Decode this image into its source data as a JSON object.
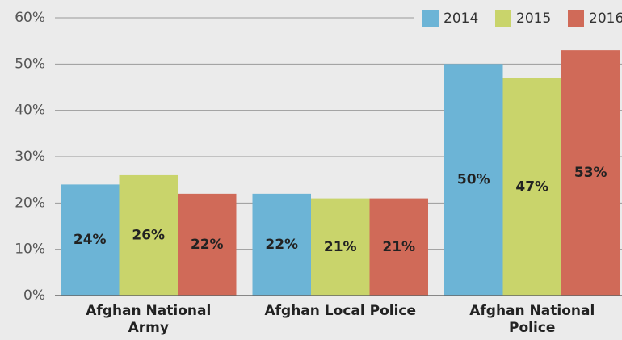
{
  "chart_data": {
    "type": "bar",
    "categories": [
      "Afghan National Army",
      "Afghan Local Police",
      "Afghan National Police"
    ],
    "series": [
      {
        "name": "2014",
        "color": "#6cb4d6",
        "values": [
          24,
          22,
          50
        ],
        "value_labels": [
          "24%",
          "22%",
          "50%"
        ]
      },
      {
        "name": "2015",
        "color": "#c9d46b",
        "values": [
          26,
          21,
          47
        ],
        "value_labels": [
          "26%",
          "21%",
          "47%"
        ]
      },
      {
        "name": "2016",
        "color": "#d06a58",
        "values": [
          22,
          21,
          53
        ],
        "value_labels": [
          "22%",
          "21%",
          "53%"
        ]
      }
    ],
    "ylim": [
      0,
      60
    ],
    "yticks": [
      {
        "value": 0,
        "label": "0%"
      },
      {
        "value": 10,
        "label": "10%"
      },
      {
        "value": 20,
        "label": "20%"
      },
      {
        "value": 30,
        "label": "30%"
      },
      {
        "value": 40,
        "label": "40%"
      },
      {
        "value": 50,
        "label": "50%"
      },
      {
        "value": 60,
        "label": "60%"
      }
    ],
    "grid": true,
    "legend": "top-right"
  }
}
